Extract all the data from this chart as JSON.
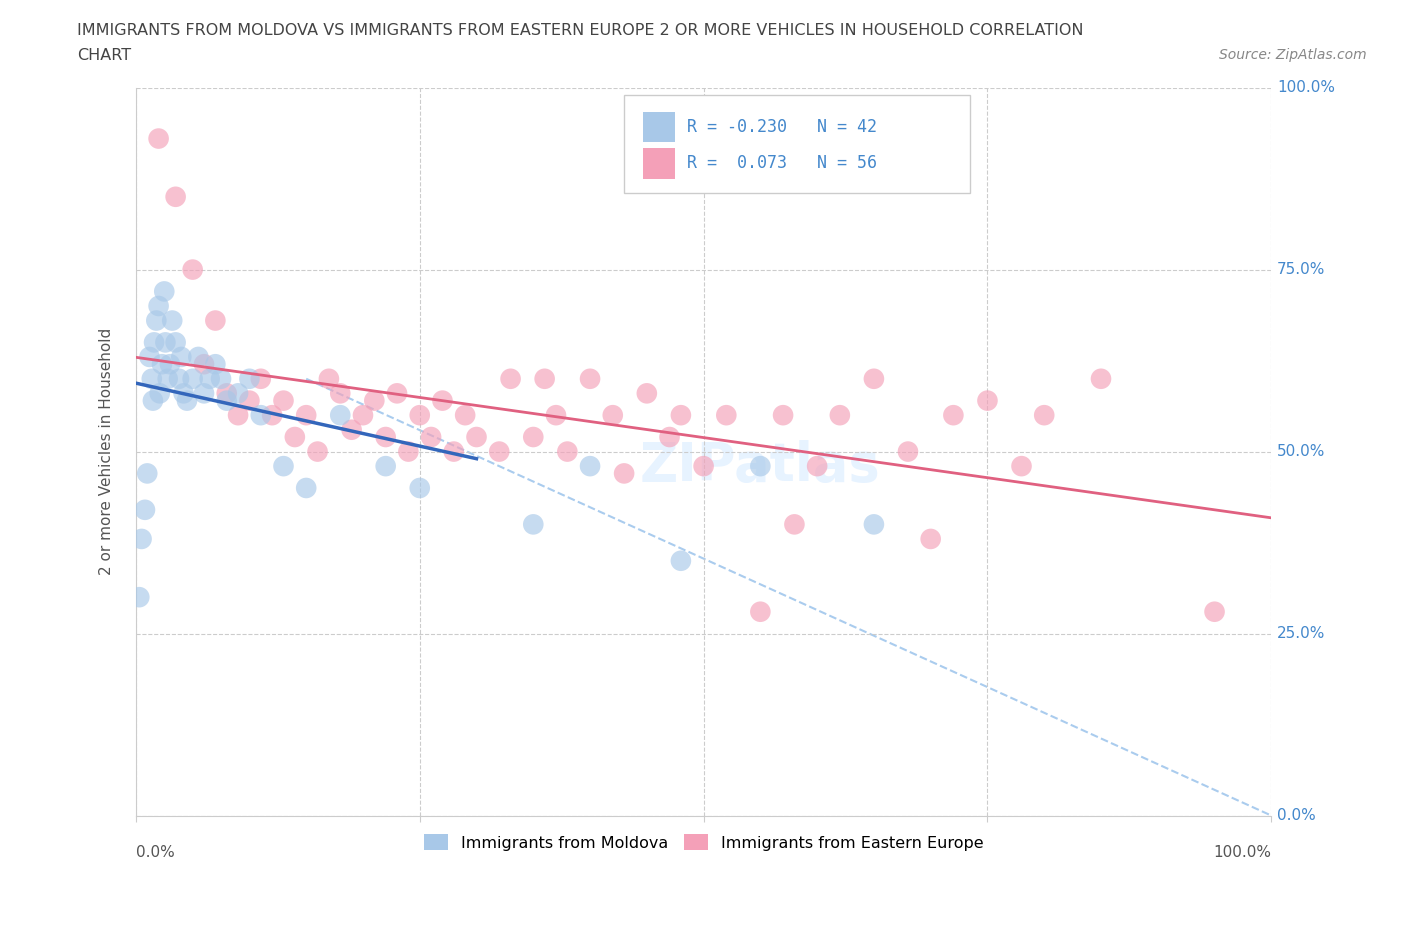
{
  "title_line1": "IMMIGRANTS FROM MOLDOVA VS IMMIGRANTS FROM EASTERN EUROPE 2 OR MORE VEHICLES IN HOUSEHOLD CORRELATION",
  "title_line2": "CHART",
  "source": "Source: ZipAtlas.com",
  "ylabel": "2 or more Vehicles in Household",
  "xlim": [
    0,
    100
  ],
  "ylim": [
    0,
    100
  ],
  "ytick_positions": [
    0,
    25,
    50,
    75,
    100
  ],
  "ytick_labels": [
    "0.0%",
    "25.0%",
    "50.0%",
    "75.0%",
    "100.0%"
  ],
  "xtick_labels_left": "0.0%",
  "xtick_labels_right": "100.0%",
  "r_moldova": -0.23,
  "n_moldova": 42,
  "r_eastern": 0.073,
  "n_eastern": 56,
  "color_moldova": "#a8c8e8",
  "color_eastern": "#f4a0b8",
  "line_color_moldova": "#3366bb",
  "line_color_eastern": "#e06080",
  "line_color_ref": "#aaccee",
  "legend_labels": [
    "Immigrants from Moldova",
    "Immigrants from Eastern Europe"
  ],
  "background_color": "#ffffff",
  "title_color": "#444444",
  "source_color": "#888888",
  "axis_label_color": "#555555",
  "right_label_color": "#4488cc",
  "moldova_x": [
    0.3,
    0.5,
    0.8,
    1.0,
    1.2,
    1.4,
    1.5,
    1.6,
    1.8,
    2.0,
    2.1,
    2.3,
    2.5,
    2.6,
    2.8,
    3.0,
    3.2,
    3.5,
    3.8,
    4.0,
    4.2,
    4.5,
    5.0,
    5.5,
    6.0,
    6.5,
    7.0,
    7.5,
    8.0,
    9.0,
    10.0,
    11.0,
    13.0,
    15.0,
    18.0,
    22.0,
    25.0,
    35.0,
    40.0,
    48.0,
    55.0,
    65.0
  ],
  "moldova_y": [
    30,
    38,
    42,
    47,
    63,
    60,
    57,
    65,
    68,
    70,
    58,
    62,
    72,
    65,
    60,
    62,
    68,
    65,
    60,
    63,
    58,
    57,
    60,
    63,
    58,
    60,
    62,
    60,
    57,
    58,
    60,
    55,
    48,
    45,
    55,
    48,
    45,
    40,
    48,
    35,
    48,
    40
  ],
  "eastern_x": [
    2.0,
    3.5,
    5.0,
    6.0,
    7.0,
    8.0,
    9.0,
    10.0,
    11.0,
    12.0,
    13.0,
    14.0,
    15.0,
    16.0,
    17.0,
    18.0,
    19.0,
    20.0,
    21.0,
    22.0,
    23.0,
    24.0,
    25.0,
    26.0,
    27.0,
    28.0,
    29.0,
    30.0,
    32.0,
    33.0,
    35.0,
    36.0,
    37.0,
    38.0,
    40.0,
    42.0,
    43.0,
    45.0,
    47.0,
    48.0,
    50.0,
    52.0,
    55.0,
    57.0,
    58.0,
    60.0,
    62.0,
    65.0,
    68.0,
    70.0,
    72.0,
    75.0,
    78.0,
    80.0,
    85.0,
    95.0
  ],
  "eastern_y": [
    93,
    85,
    75,
    62,
    68,
    58,
    55,
    57,
    60,
    55,
    57,
    52,
    55,
    50,
    60,
    58,
    53,
    55,
    57,
    52,
    58,
    50,
    55,
    52,
    57,
    50,
    55,
    52,
    50,
    60,
    52,
    60,
    55,
    50,
    60,
    55,
    47,
    58,
    52,
    55,
    48,
    55,
    28,
    55,
    40,
    48,
    55,
    60,
    50,
    38,
    55,
    57,
    48,
    55,
    60,
    28
  ],
  "ref_line_x": [
    15,
    100
  ],
  "ref_line_y": [
    60,
    0
  ]
}
